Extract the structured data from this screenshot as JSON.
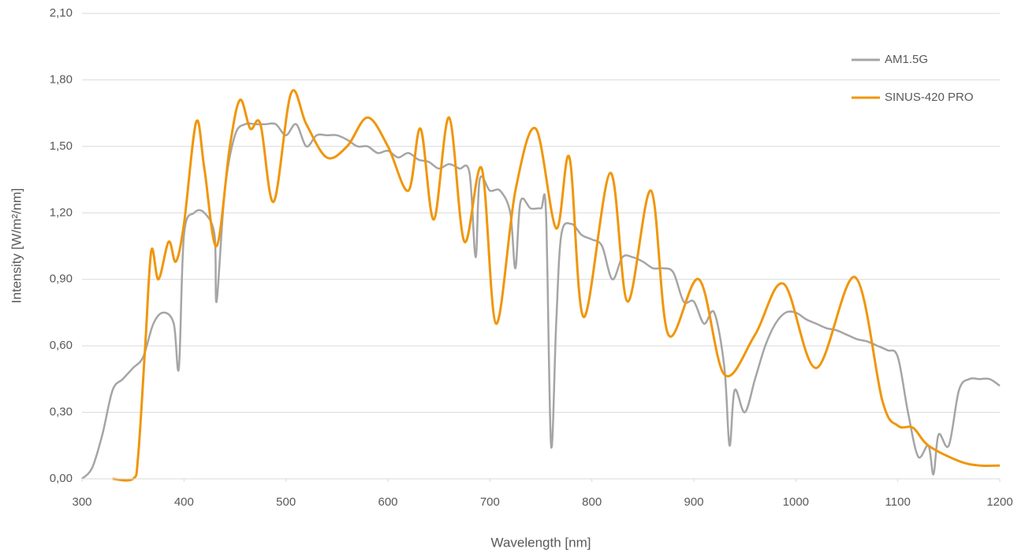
{
  "chart_data": {
    "type": "line",
    "x_label": "Wavelength [nm]",
    "y_label": "Intensity [W/m²/nm]",
    "xlim": [
      300,
      1200
    ],
    "xticks": [
      300,
      400,
      500,
      600,
      700,
      800,
      900,
      1000,
      1100,
      1200
    ],
    "ylim": [
      0,
      2.1
    ],
    "yticks": [
      {
        "value": 0,
        "label": "0,00"
      },
      {
        "value": 0.3,
        "label": "0,30"
      },
      {
        "value": 0.6,
        "label": "0,60"
      },
      {
        "value": 0.9,
        "label": "0,90"
      },
      {
        "value": 1.2,
        "label": "1,20"
      },
      {
        "value": 1.5,
        "label": "1,50"
      },
      {
        "value": 1.8,
        "label": "1,80"
      },
      {
        "value": 2.1,
        "label": "2,10"
      }
    ],
    "grid": true,
    "legend": "top-right",
    "series": [
      {
        "name": "AM1.5G",
        "color": "#a5a5a5",
        "x": [
          300,
          310,
          320,
          330,
          340,
          350,
          360,
          370,
          380,
          390,
          395,
          400,
          410,
          420,
          430,
          432,
          440,
          450,
          460,
          470,
          480,
          490,
          500,
          510,
          520,
          530,
          540,
          550,
          560,
          570,
          580,
          590,
          600,
          610,
          620,
          630,
          640,
          650,
          660,
          670,
          680,
          686,
          690,
          700,
          710,
          720,
          725,
          730,
          740,
          750,
          755,
          760,
          765,
          770,
          780,
          790,
          800,
          810,
          820,
          830,
          840,
          850,
          860,
          870,
          880,
          890,
          900,
          910,
          920,
          930,
          935,
          940,
          950,
          960,
          970,
          980,
          990,
          1000,
          1010,
          1020,
          1030,
          1040,
          1050,
          1060,
          1070,
          1080,
          1090,
          1100,
          1110,
          1120,
          1130,
          1135,
          1140,
          1150,
          1160,
          1170,
          1180,
          1190,
          1200
        ],
        "values": [
          0,
          0.05,
          0.2,
          0.4,
          0.45,
          0.5,
          0.55,
          0.7,
          0.75,
          0.7,
          0.5,
          1.1,
          1.2,
          1.2,
          1.1,
          0.8,
          1.3,
          1.55,
          1.6,
          1.6,
          1.6,
          1.6,
          1.55,
          1.6,
          1.5,
          1.55,
          1.55,
          1.55,
          1.53,
          1.5,
          1.5,
          1.47,
          1.48,
          1.45,
          1.47,
          1.44,
          1.43,
          1.4,
          1.42,
          1.4,
          1.38,
          1.0,
          1.35,
          1.3,
          1.3,
          1.2,
          0.95,
          1.25,
          1.22,
          1.22,
          1.2,
          0.15,
          0.7,
          1.1,
          1.15,
          1.1,
          1.08,
          1.05,
          0.9,
          1.0,
          1.0,
          0.98,
          0.95,
          0.95,
          0.93,
          0.8,
          0.8,
          0.7,
          0.75,
          0.5,
          0.15,
          0.4,
          0.3,
          0.45,
          0.6,
          0.7,
          0.75,
          0.75,
          0.72,
          0.7,
          0.68,
          0.67,
          0.65,
          0.63,
          0.62,
          0.6,
          0.58,
          0.55,
          0.3,
          0.1,
          0.15,
          0.02,
          0.2,
          0.15,
          0.4,
          0.45,
          0.45,
          0.45,
          0.42
        ]
      },
      {
        "name": "SINUS-420 PRO",
        "color": "#f0960a",
        "x": [
          330,
          350,
          355,
          362,
          368,
          375,
          385,
          392,
          400,
          412,
          420,
          432,
          445,
          455,
          465,
          475,
          488,
          505,
          520,
          540,
          560,
          580,
          600,
          620,
          632,
          645,
          660,
          675,
          692,
          706,
          725,
          745,
          765,
          778,
          792,
          818,
          835,
          858,
          875,
          905,
          930,
          960,
          988,
          1020,
          1058,
          1085,
          1100,
          1115,
          1130,
          1160,
          1180,
          1200
        ],
        "values": [
          0,
          0,
          0.1,
          0.6,
          1.03,
          0.9,
          1.07,
          0.98,
          1.15,
          1.61,
          1.4,
          1.05,
          1.5,
          1.71,
          1.58,
          1.6,
          1.25,
          1.74,
          1.6,
          1.45,
          1.5,
          1.63,
          1.5,
          1.3,
          1.58,
          1.17,
          1.63,
          1.07,
          1.4,
          0.7,
          1.3,
          1.58,
          1.13,
          1.45,
          0.73,
          1.38,
          0.8,
          1.3,
          0.65,
          0.9,
          0.47,
          0.65,
          0.88,
          0.5,
          0.91,
          0.35,
          0.24,
          0.23,
          0.15,
          0.08,
          0.06,
          0.06
        ]
      }
    ]
  }
}
